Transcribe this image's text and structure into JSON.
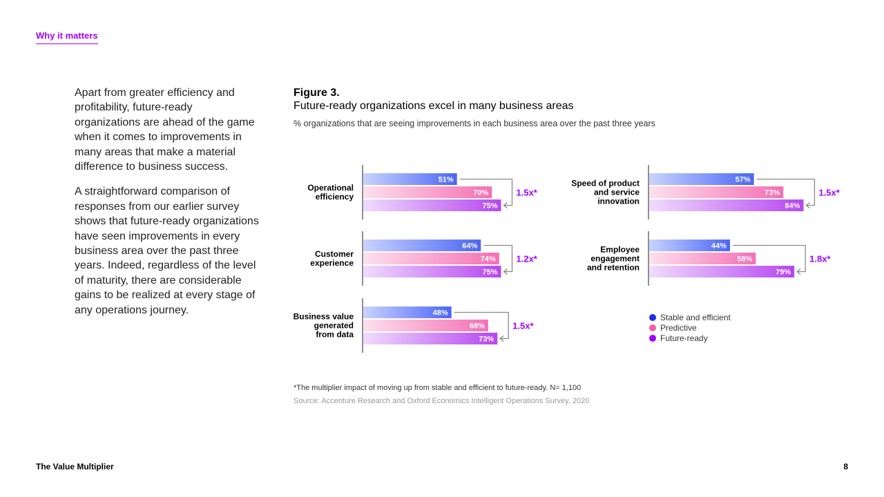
{
  "section_tag": "Why it matters",
  "body": {
    "paragraph1": "Apart from greater efficiency and profitability, future-ready organizations are ahead of the game when it comes to improvements in many areas that make a material difference to business success.",
    "paragraph2": "A straightforward comparison of responses from our earlier survey shows that future-ready organizations have seen improvements in every business area over the past three years. Indeed, regardless of the level of maturity, there are considerable gains to be realized at every stage of any operations journey."
  },
  "figure": {
    "label": "Figure 3.",
    "title": "Future-ready organizations excel in many business areas",
    "subtitle": "% organizations that are seeing improvements in each business area over the past three years",
    "footnote": "*The multiplier impact of moving up from stable and efficient to future-ready. N= 1,100",
    "source": "Source: Accenture Research and Oxford Economics Intelligent Operations Survey, 2020"
  },
  "chart_data": {
    "type": "bar",
    "orientation": "horizontal",
    "xlim": [
      0,
      100
    ],
    "unit": "%",
    "series": [
      {
        "name": "Stable and efficient",
        "color": "#1a2cf0"
      },
      {
        "name": "Predictive",
        "color": "#f45ca6"
      },
      {
        "name": "Future-ready",
        "color": "#a100ff"
      }
    ],
    "legend_position": "bottom-right",
    "groups": [
      {
        "label": "Operational efficiency",
        "values": [
          51,
          70,
          75
        ],
        "multiplier": "1.5x*"
      },
      {
        "label": "Customer experience",
        "values": [
          64,
          74,
          75
        ],
        "multiplier": "1.2x*"
      },
      {
        "label": "Business value generated from data",
        "values": [
          48,
          68,
          73
        ],
        "multiplier": "1.5x*"
      },
      {
        "label": "Speed of product and service innovation",
        "values": [
          57,
          73,
          84
        ],
        "multiplier": "1.5x*"
      },
      {
        "label": "Employee engagement and retention",
        "values": [
          44,
          58,
          79
        ],
        "multiplier": "1.8x*"
      }
    ]
  },
  "footer": {
    "title": "The Value Multiplier",
    "page_number": "8"
  }
}
